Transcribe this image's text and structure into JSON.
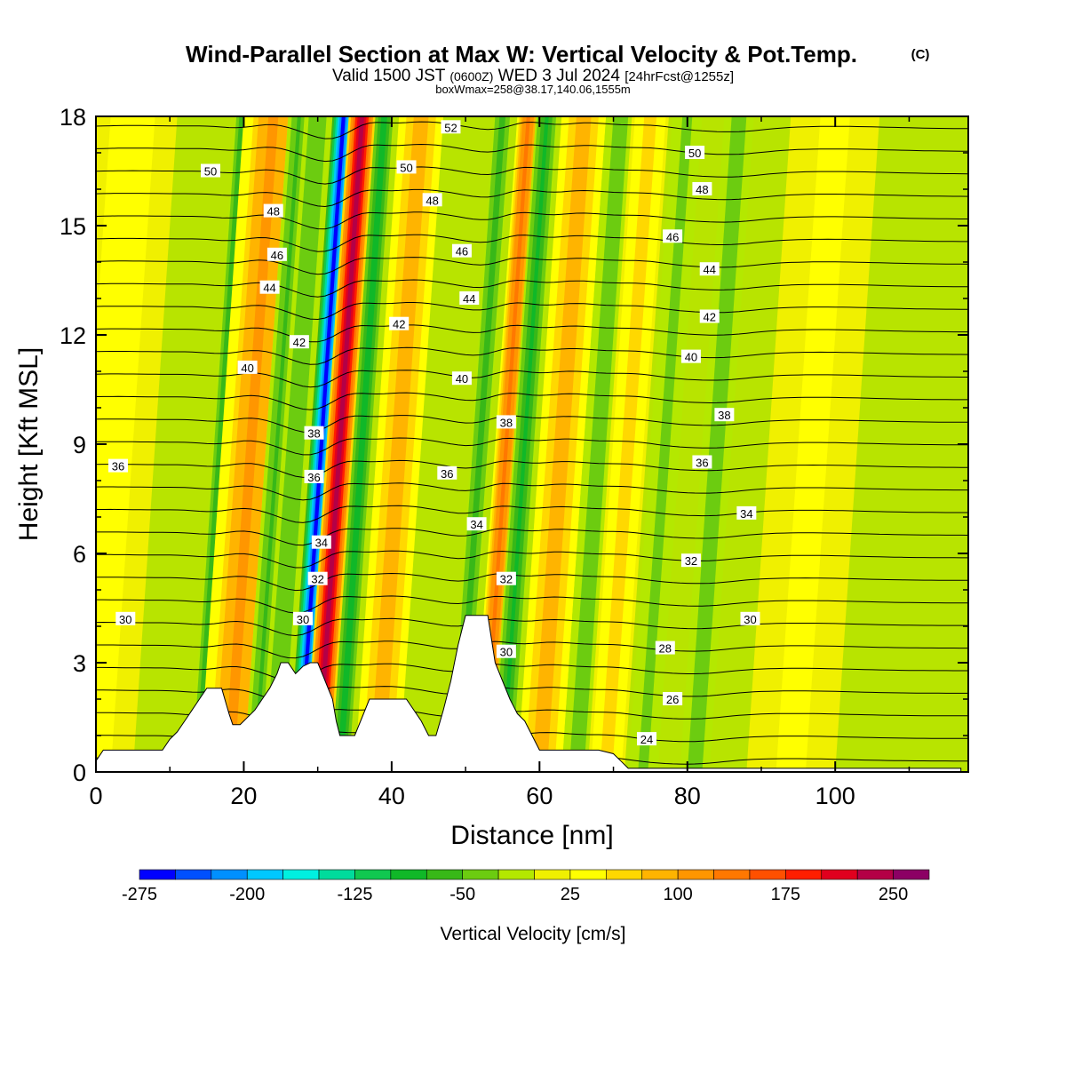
{
  "header": {
    "title": "Wind-Parallel Section at Max W: Vertical Velocity & Pot.Temp.",
    "copyright": "(C)",
    "valid_prefix": "Valid 1500 JST",
    "valid_utc": "(0600Z)",
    "valid_date": "WED 3 Jul 2024",
    "forecast": "[24hrFcst@1255z]",
    "boxinfo": "boxWmax=258@38.17,140.06,1555m"
  },
  "chart_data": {
    "type": "heatmap",
    "title": "Wind-Parallel Section at Max W: Vertical Velocity & Pot.Temp.",
    "xlabel": "Distance [nm]",
    "ylabel": "Height [Kft MSL]",
    "xlim": [
      0,
      118
    ],
    "ylim": [
      0,
      18
    ],
    "xticks": [
      "0",
      "20",
      "40",
      "60",
      "80",
      "100"
    ],
    "xtick_values": [
      0,
      20,
      40,
      60,
      80,
      100
    ],
    "yticks": [
      "0",
      "3",
      "6",
      "9",
      "12",
      "15",
      "18"
    ],
    "ytick_values": [
      0,
      3,
      6,
      9,
      12,
      15,
      18
    ],
    "colorbar": {
      "label": "Vertical Velocity [cm/s]",
      "levels": [
        -275,
        -250,
        -225,
        -200,
        -175,
        -150,
        -125,
        -100,
        -75,
        -50,
        -25,
        0,
        25,
        50,
        75,
        100,
        125,
        150,
        175,
        200,
        225,
        250,
        275
      ],
      "tick_labels": [
        "-275",
        "-200",
        "-125",
        "-50",
        "25",
        "100",
        "175",
        "250"
      ],
      "tick_values": [
        -275,
        -200,
        -125,
        -50,
        25,
        100,
        175,
        250
      ],
      "colors": [
        "#0000ff",
        "#0050ff",
        "#0090ff",
        "#00c8ff",
        "#00f0e0",
        "#00dc9c",
        "#10c850",
        "#10b828",
        "#38b818",
        "#6ccc10",
        "#b4e800",
        "#f0f000",
        "#ffff00",
        "#ffd800",
        "#ffb400",
        "#ff9600",
        "#ff7800",
        "#ff5000",
        "#ff1e00",
        "#e0001e",
        "#b40046",
        "#8c0064",
        "#64008c"
      ]
    },
    "velocity_bands": [
      {
        "x": 2,
        "w": 6,
        "value": 40
      },
      {
        "x": 17,
        "w": 1.2,
        "value": -70
      },
      {
        "x": 21,
        "w": 4,
        "value": 110
      },
      {
        "x": 24.5,
        "w": 1.5,
        "value": -55
      },
      {
        "x": 27,
        "w": 1.8,
        "value": -45
      },
      {
        "x": 30.5,
        "w": 1.5,
        "value": -255
      },
      {
        "x": 33,
        "w": 1.8,
        "value": 250
      },
      {
        "x": 36,
        "w": 1.2,
        "value": -90
      },
      {
        "x": 41,
        "w": 3,
        "value": 90
      },
      {
        "x": 52,
        "w": 1.2,
        "value": -60
      },
      {
        "x": 55.5,
        "w": 1.5,
        "value": 140
      },
      {
        "x": 58,
        "w": 1.5,
        "value": -80
      },
      {
        "x": 63,
        "w": 3,
        "value": 95
      },
      {
        "x": 68,
        "w": 2,
        "value": -35
      },
      {
        "x": 72,
        "w": 2.5,
        "value": 60
      },
      {
        "x": 77,
        "w": 2,
        "value": -30
      },
      {
        "x": 84,
        "w": 2,
        "value": -40
      },
      {
        "x": 97,
        "w": 6,
        "value": 30
      }
    ],
    "terrain_kft": [
      [
        0,
        0.3
      ],
      [
        1,
        0.6
      ],
      [
        9,
        0.6
      ],
      [
        10,
        0.9
      ],
      [
        11,
        1.1
      ],
      [
        12,
        1.4
      ],
      [
        13,
        1.7
      ],
      [
        14,
        2.0
      ],
      [
        15,
        2.3
      ],
      [
        17,
        2.3
      ],
      [
        18,
        1.6
      ],
      [
        18.5,
        1.3
      ],
      [
        19.5,
        1.3
      ],
      [
        20.5,
        1.5
      ],
      [
        21.5,
        1.7
      ],
      [
        22.5,
        2.0
      ],
      [
        23.5,
        2.3
      ],
      [
        24.5,
        2.7
      ],
      [
        25,
        3.0
      ],
      [
        26,
        3.0
      ],
      [
        27,
        2.7
      ],
      [
        28,
        2.9
      ],
      [
        29,
        3.0
      ],
      [
        30,
        3.0
      ],
      [
        31,
        2.5
      ],
      [
        32,
        2.0
      ],
      [
        32.5,
        1.4
      ],
      [
        33,
        1.0
      ],
      [
        35,
        1.0
      ],
      [
        36,
        1.5
      ],
      [
        37,
        2.0
      ],
      [
        38,
        2.0
      ],
      [
        42,
        2.0
      ],
      [
        44,
        1.4
      ],
      [
        45,
        1.0
      ],
      [
        46,
        1.0
      ],
      [
        47,
        1.7
      ],
      [
        48,
        2.5
      ],
      [
        48.5,
        3.0
      ],
      [
        49,
        3.5
      ],
      [
        50,
        4.3
      ],
      [
        53,
        4.3
      ],
      [
        54,
        3.0
      ],
      [
        55,
        2.5
      ],
      [
        56,
        2.0
      ],
      [
        57,
        1.6
      ],
      [
        58,
        1.4
      ],
      [
        59,
        1.0
      ],
      [
        60,
        0.6
      ],
      [
        68,
        0.6
      ],
      [
        70,
        0.5
      ],
      [
        71,
        0.3
      ],
      [
        72,
        0.1
      ],
      [
        117,
        0.1
      ]
    ],
    "theta_label_unit": "Pot.Temp.",
    "contour_labels": [
      {
        "x": 15.5,
        "y": 16.5,
        "text": "50"
      },
      {
        "x": 42,
        "y": 16.6,
        "text": "50"
      },
      {
        "x": 48,
        "y": 17.7,
        "text": "52"
      },
      {
        "x": 81,
        "y": 17.0,
        "text": "50"
      },
      {
        "x": 24,
        "y": 15.4,
        "text": "48"
      },
      {
        "x": 45.5,
        "y": 15.7,
        "text": "48"
      },
      {
        "x": 82,
        "y": 16.0,
        "text": "48"
      },
      {
        "x": 24.5,
        "y": 14.2,
        "text": "46"
      },
      {
        "x": 49.5,
        "y": 14.3,
        "text": "46"
      },
      {
        "x": 78,
        "y": 14.7,
        "text": "46"
      },
      {
        "x": 23.5,
        "y": 13.3,
        "text": "44"
      },
      {
        "x": 50.5,
        "y": 13.0,
        "text": "44"
      },
      {
        "x": 83,
        "y": 13.8,
        "text": "44"
      },
      {
        "x": 27.5,
        "y": 11.8,
        "text": "42"
      },
      {
        "x": 41,
        "y": 12.3,
        "text": "42"
      },
      {
        "x": 83,
        "y": 12.5,
        "text": "42"
      },
      {
        "x": 20.5,
        "y": 11.1,
        "text": "40"
      },
      {
        "x": 49.5,
        "y": 10.8,
        "text": "40"
      },
      {
        "x": 80.5,
        "y": 11.4,
        "text": "40"
      },
      {
        "x": 29.5,
        "y": 9.3,
        "text": "38"
      },
      {
        "x": 55.5,
        "y": 9.6,
        "text": "38"
      },
      {
        "x": 85,
        "y": 9.8,
        "text": "38"
      },
      {
        "x": 3,
        "y": 8.4,
        "text": "36"
      },
      {
        "x": 29.5,
        "y": 8.1,
        "text": "36"
      },
      {
        "x": 47.5,
        "y": 8.2,
        "text": "36"
      },
      {
        "x": 82,
        "y": 8.5,
        "text": "36"
      },
      {
        "x": 30.5,
        "y": 6.3,
        "text": "34"
      },
      {
        "x": 51.5,
        "y": 6.8,
        "text": "34"
      },
      {
        "x": 88,
        "y": 7.1,
        "text": "34"
      },
      {
        "x": 30,
        "y": 5.3,
        "text": "32"
      },
      {
        "x": 55.5,
        "y": 5.3,
        "text": "32"
      },
      {
        "x": 80.5,
        "y": 5.8,
        "text": "32"
      },
      {
        "x": 4,
        "y": 4.2,
        "text": "30"
      },
      {
        "x": 28,
        "y": 4.2,
        "text": "30"
      },
      {
        "x": 55.5,
        "y": 3.3,
        "text": "30"
      },
      {
        "x": 88.5,
        "y": 4.2,
        "text": "30"
      },
      {
        "x": 77,
        "y": 3.4,
        "text": "28"
      },
      {
        "x": 78,
        "y": 2.0,
        "text": "26"
      },
      {
        "x": 74.5,
        "y": 0.9,
        "text": "24"
      }
    ]
  }
}
